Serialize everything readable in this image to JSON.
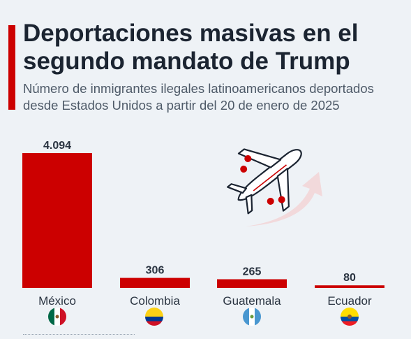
{
  "colors": {
    "accent": "#cc0000",
    "bar": "#cc0000",
    "title": "#1b2431",
    "subtitle": "#4e5a68",
    "label": "#2a3441",
    "background": "#eef2f6"
  },
  "header": {
    "title": "Deportaciones masivas en el segundo mandato de Trump",
    "subtitle": "Número de inmigrantes ilegales latinoamericanos deportados desde Estados Unidos a partir del 20 de enero de 2025"
  },
  "illustration": {
    "icon": "airplane-icon",
    "arrow": "curved-arrow-icon"
  },
  "flags": [
    {
      "country": "México",
      "icon": "mexico-flag-icon"
    },
    {
      "country": "Colombia",
      "icon": "colombia-flag-icon"
    },
    {
      "country": "Guatemala",
      "icon": "guatemala-flag-icon"
    },
    {
      "country": "Ecuador",
      "icon": "ecuador-flag-icon"
    }
  ],
  "chart_data": {
    "type": "bar",
    "title": "Deportaciones masivas en el segundo mandato de Trump",
    "subtitle": "Número de inmigrantes ilegales latinoamericanos deportados desde Estados Unidos a partir del 20 de enero de 2025",
    "categories": [
      "México",
      "Colombia",
      "Guatemala",
      "Ecuador"
    ],
    "values": [
      4094,
      306,
      265,
      80
    ],
    "value_labels": [
      "4.094",
      "306",
      "265",
      "80"
    ],
    "xlabel": "",
    "ylabel": "",
    "ylim": [
      0,
      4094
    ],
    "grid": false,
    "legend": "none"
  }
}
